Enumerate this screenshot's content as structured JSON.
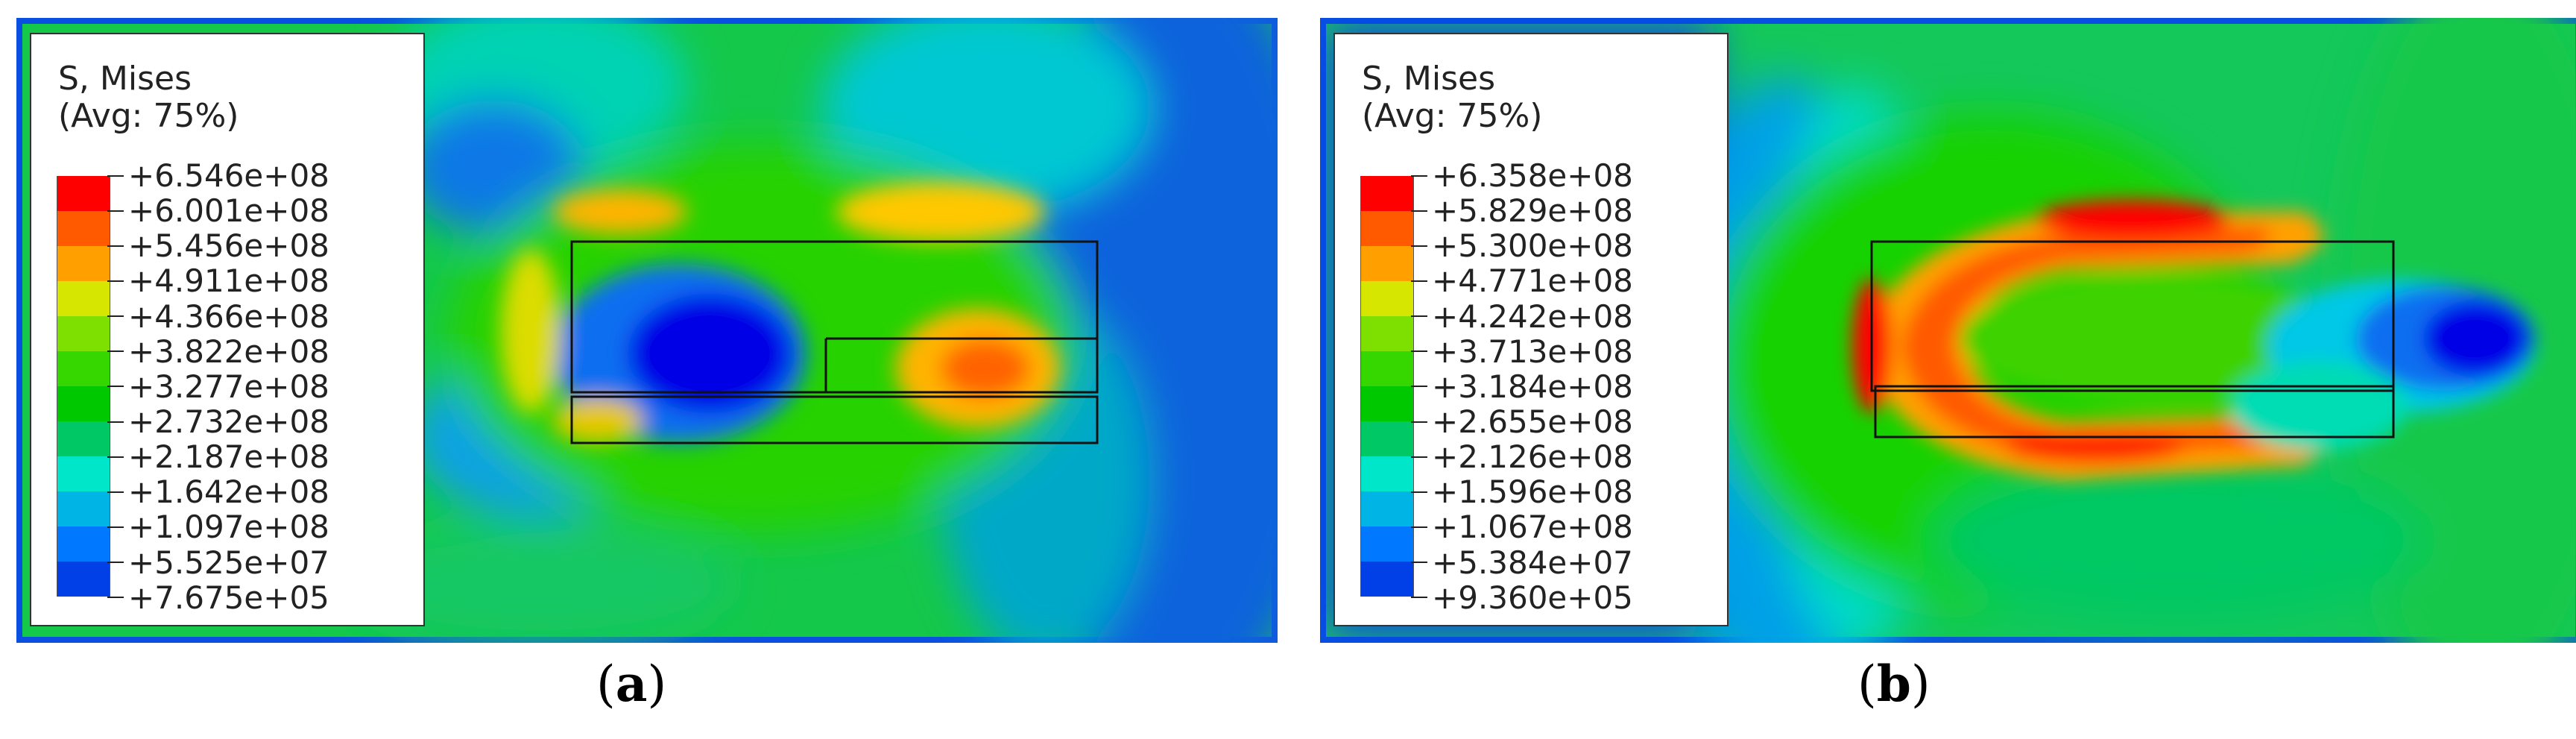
{
  "panels": [
    {
      "id": "a",
      "caption_letter": "a",
      "legend": {
        "title_line1": "S, Mises",
        "title_line2": "(Avg: 75%)",
        "values": [
          "+6.546e+08",
          "+6.001e+08",
          "+5.456e+08",
          "+4.911e+08",
          "+4.366e+08",
          "+3.822e+08",
          "+3.277e+08",
          "+2.732e+08",
          "+2.187e+08",
          "+1.642e+08",
          "+1.097e+08",
          "+5.525e+07",
          "+7.675e+05"
        ]
      }
    },
    {
      "id": "b",
      "caption_letter": "b",
      "legend": {
        "title_line1": "S, Mises",
        "title_line2": "(Avg: 75%)",
        "values": [
          "+6.358e+08",
          "+5.829e+08",
          "+5.300e+08",
          "+4.771e+08",
          "+4.242e+08",
          "+3.713e+08",
          "+3.184e+08",
          "+2.655e+08",
          "+2.126e+08",
          "+1.596e+08",
          "+1.067e+08",
          "+5.384e+07",
          "+9.360e+05"
        ]
      }
    }
  ],
  "colormap": [
    "#ff0000",
    "#ff5a00",
    "#ffa000",
    "#d6e600",
    "#7ee000",
    "#36d600",
    "#00c800",
    "#00c864",
    "#00e6c8",
    "#00b4e6",
    "#0078ff",
    "#0040e6",
    "#0000dc"
  ]
}
